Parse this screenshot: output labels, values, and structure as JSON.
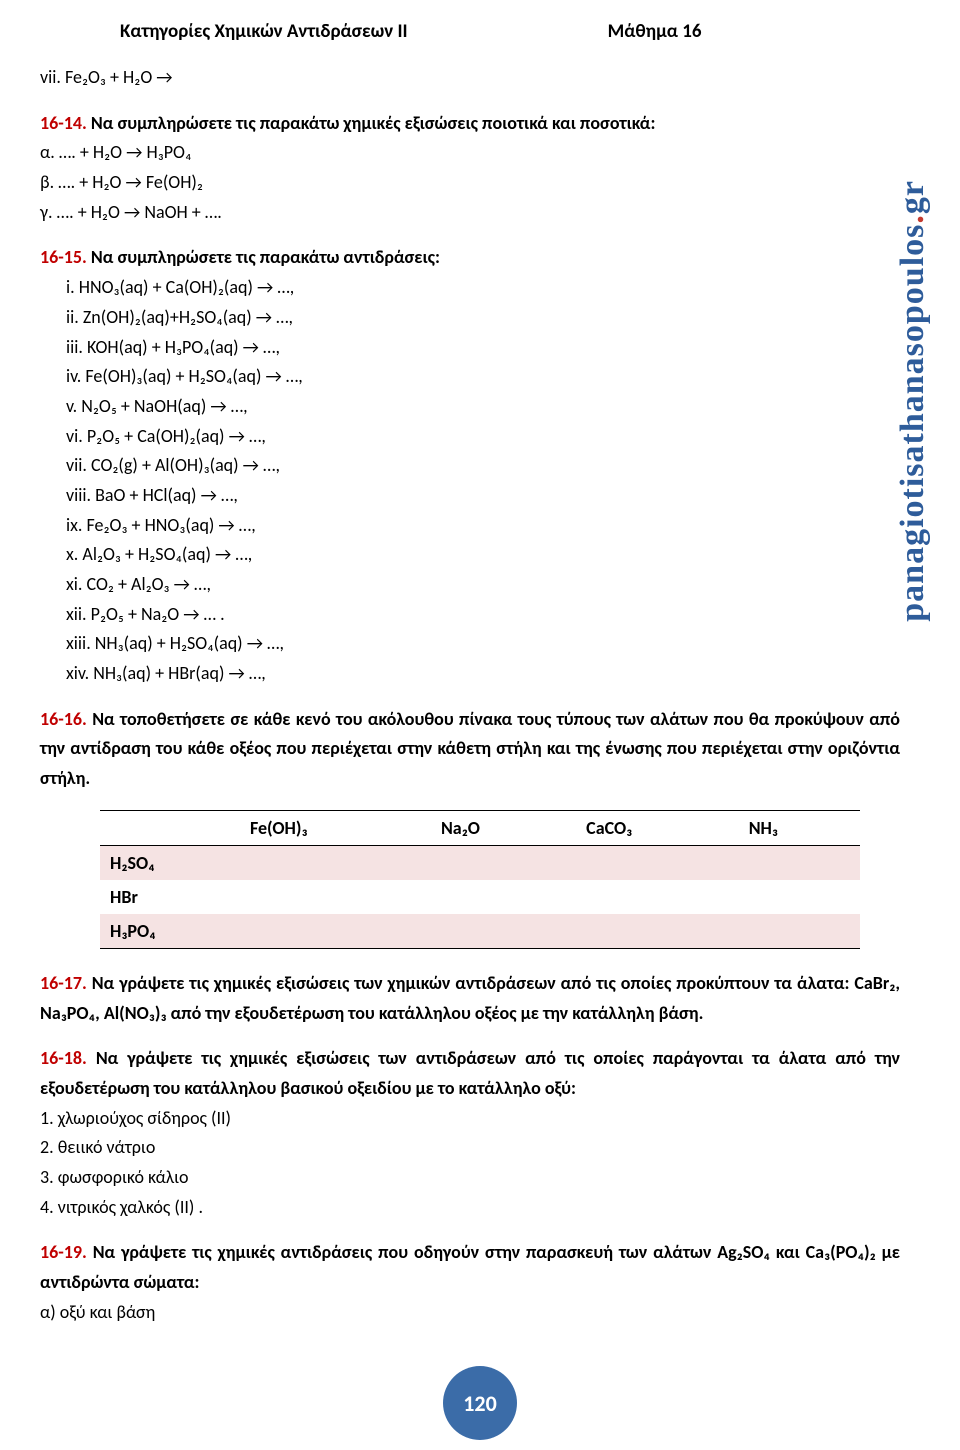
{
  "header": {
    "title": "Κατηγορίες Χημικών Αντιδράσεων ΙΙ",
    "lesson": "Μάθημα 16"
  },
  "watermark": "panagiotisathanasopoulos.gr",
  "q13_vii": "vii. Fe₂O₃ + H₂O →",
  "q14": {
    "num": "16-14.",
    "text": "Να συμπληρώσετε τις παρακάτω χημικές εξισώσεις ποιοτικά και ποσοτικά:",
    "items": [
      "α. …. + H₂O → H₃PO₄",
      "β. …. + H₂O → Fe(OH)₂",
      "γ. …. + H₂O → NaOH + …."
    ]
  },
  "q15": {
    "num": "16-15.",
    "text": "Να συμπληρώσετε τις παρακάτω αντιδράσεις:",
    "items": [
      "HNO₃(aq) + Ca(OH)₂(aq) → …,",
      "Zn(OH)₂(aq)+H₂SO₄(aq) → …,",
      "KOH(aq) + H₃PO₄(aq) → …,",
      "Fe(OH)₃(aq) + H₂SO₄(aq) → …,",
      "N₂O₅ + NaOH(aq) → …,",
      "P₂O₅ + Ca(OH)₂(aq) → …,",
      "CO₂(g) + Al(OH)₃(aq) → …,",
      "BaO + HCl(aq) → …,",
      "Fe₂O₃ + HNO₃(aq) → …,",
      "Al₂O₃ + H₂SO₄(aq) → …,",
      "CO₂ + Al₂O₃ → …,",
      "P₂O₅ + Na₂O → … .",
      "NH₃(aq) + H₂SO₄(aq) → …,",
      "NH₃(aq) + HBr(aq) → …,"
    ],
    "romans": [
      "i.",
      "ii.",
      "iii.",
      "iv.",
      "v.",
      "vi.",
      "vii.",
      "viii.",
      "ix.",
      "x.",
      "xi.",
      "xii.",
      "xiii.",
      "xiv."
    ]
  },
  "q16": {
    "num": "16-16.",
    "text": "Να τοποθετήσετε σε κάθε κενό του ακόλουθου πίνακα τους τύπους των αλάτων που θα προκύψουν από την αντίδραση του κάθε οξέος που περιέχεται στην κάθετη στήλη και της ένωσης που περιέχεται στην οριζόντια στήλη."
  },
  "table": {
    "cols": [
      "Fe(OH)₃",
      "Na₂O",
      "CaCO₃",
      "NH₃"
    ],
    "rows": [
      "H₂SO₄",
      "HBr",
      "H₃PO₄"
    ]
  },
  "q17": {
    "num": "16-17.",
    "text": "Να γράψετε τις χημικές εξισώσεις των χημικών αντιδράσεων από τις οποίες προκύπτουν τα άλατα: CaBr₂, Na₃PO₄, Al(NO₃)₃ από την εξουδετέρωση του κατάλληλου οξέος με την κατάλληλη βάση."
  },
  "q18": {
    "num": "16-18.",
    "text": "Να γράψετε τις χημικές εξισώσεις των αντιδράσεων από τις οποίες παράγονται τα άλατα από την εξουδετέρωση του κατάλληλου βασικού οξειδίου με το κατάλληλο οξύ:",
    "items": [
      "1. χλωριούχος σίδηρος (II)",
      "2. θειικό νάτριο",
      "3. φωσφορικό κάλιο",
      "4. νιτρικός χαλκός (II) ."
    ]
  },
  "q19": {
    "num": "16-19.",
    "text_a": "Να γράψετε τις χημικές αντιδράσεις που οδηγούν στην παρασκευή των αλάτων Ag₂SO₄ και Ca₃(PO₄)₂ με αντιδρώντα σώματα:",
    "item_a": "α) οξύ και βάση"
  },
  "page": "120"
}
